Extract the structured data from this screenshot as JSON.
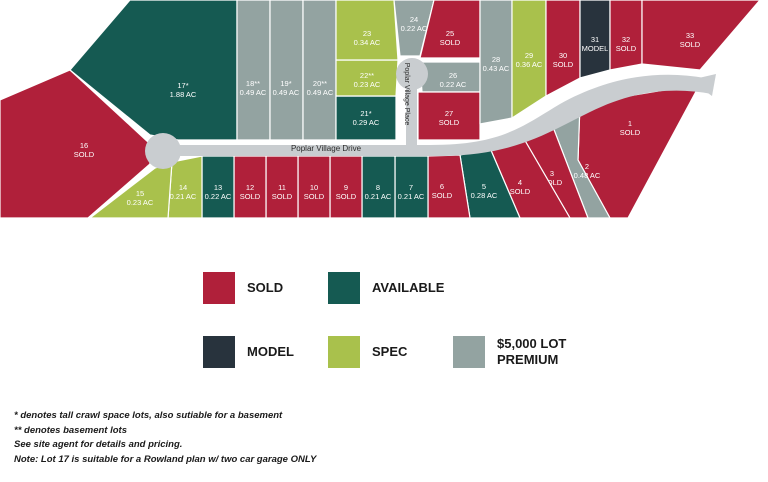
{
  "colors": {
    "sold": "#b0203a",
    "available": "#155a52",
    "model": "#28333d",
    "spec": "#a9c14c",
    "premium": "#93a3a1",
    "road": "#c9cdd0"
  },
  "streets": {
    "main": "Poplar Village Drive",
    "cul_de_sac": "Poplar Village Place"
  },
  "lots": [
    {
      "number": "1",
      "detail": "SOLD",
      "status": "sold"
    },
    {
      "number": "2",
      "detail": "0.48 AC",
      "status": "premium"
    },
    {
      "number": "3",
      "detail": "SOLD",
      "status": "sold"
    },
    {
      "number": "4",
      "detail": "SOLD",
      "status": "sold"
    },
    {
      "number": "5",
      "detail": "0.28 AC",
      "status": "available"
    },
    {
      "number": "6",
      "detail": "SOLD",
      "status": "sold"
    },
    {
      "number": "7",
      "detail": "0.21 AC",
      "status": "available"
    },
    {
      "number": "8",
      "detail": "0.21 AC",
      "status": "available"
    },
    {
      "number": "9",
      "detail": "SOLD",
      "status": "sold"
    },
    {
      "number": "10",
      "detail": "SOLD",
      "status": "sold"
    },
    {
      "number": "11",
      "detail": "SOLD",
      "status": "sold"
    },
    {
      "number": "12",
      "detail": "SOLD",
      "status": "sold"
    },
    {
      "number": "13",
      "detail": "0.22 AC",
      "status": "available"
    },
    {
      "number": "14",
      "detail": "0.21 AC",
      "status": "spec"
    },
    {
      "number": "15",
      "detail": "0.23 AC",
      "status": "spec"
    },
    {
      "number": "16",
      "detail": "SOLD",
      "status": "sold"
    },
    {
      "number": "17*",
      "detail": "1.88 AC",
      "status": "available"
    },
    {
      "number": "18**",
      "detail": "0.49 AC",
      "status": "premium"
    },
    {
      "number": "19*",
      "detail": "0.49 AC",
      "status": "premium"
    },
    {
      "number": "20**",
      "detail": "0.49 AC",
      "status": "premium"
    },
    {
      "number": "21*",
      "detail": "0.29 AC",
      "status": "available"
    },
    {
      "number": "22**",
      "detail": "0.23 AC",
      "status": "spec"
    },
    {
      "number": "23",
      "detail": "0.34 AC",
      "status": "spec"
    },
    {
      "number": "24",
      "detail": "0.22 AC",
      "status": "premium"
    },
    {
      "number": "25",
      "detail": "SOLD",
      "status": "sold"
    },
    {
      "number": "26",
      "detail": "0.22 AC",
      "status": "premium"
    },
    {
      "number": "27",
      "detail": "SOLD",
      "status": "sold"
    },
    {
      "number": "28",
      "detail": "0.43 AC",
      "status": "premium"
    },
    {
      "number": "29",
      "detail": "0.36 AC",
      "status": "spec"
    },
    {
      "number": "30",
      "detail": "SOLD",
      "status": "sold"
    },
    {
      "number": "31",
      "detail": "MODEL",
      "status": "model"
    },
    {
      "number": "32",
      "detail": "SOLD",
      "status": "sold"
    },
    {
      "number": "33",
      "detail": "SOLD",
      "status": "sold"
    }
  ],
  "legend": [
    {
      "key": "sold",
      "label": "SOLD"
    },
    {
      "key": "available",
      "label": "AVAILABLE"
    },
    {
      "key": "model",
      "label": "MODEL"
    },
    {
      "key": "spec",
      "label": "SPEC"
    },
    {
      "key": "premium",
      "label": "$5,000 LOT PREMIUM"
    }
  ],
  "notes": [
    "* denotes tall crawl space lots, also sutiable for a basement",
    "** denotes basement lots",
    "See site agent for details and pricing.",
    "Note: Lot 17 is suitable for a Rowland plan w/ two car garage ONLY"
  ]
}
